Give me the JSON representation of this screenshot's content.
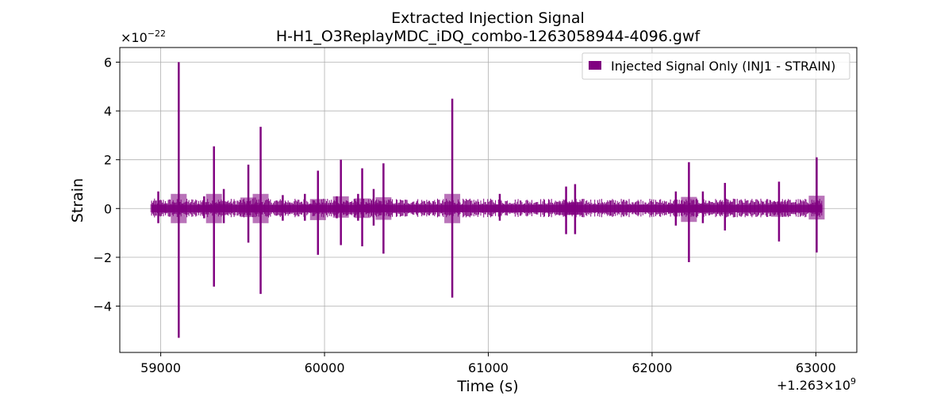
{
  "chart_data": {
    "type": "line",
    "title": "Extracted Injection Signal",
    "subtitle": "H-H1_O3ReplayMDC_iDQ_combo-1263058944-4096.gwf",
    "xlabel": "Time (s)",
    "ylabel": "Strain",
    "x_offset_text": {
      "prefix": "+1.263×10",
      "exponent": "9"
    },
    "y_scale_text": {
      "prefix": "×10",
      "exponent": "−22"
    },
    "xlim": [
      58750,
      63250
    ],
    "ylim": [
      -5.9,
      6.6
    ],
    "x_ticks": [
      59000,
      60000,
      61000,
      62000,
      63000
    ],
    "x_tick_labels": [
      "59000",
      "60000",
      "61000",
      "62000",
      "63000"
    ],
    "y_ticks": [
      -4,
      -2,
      0,
      2,
      4,
      6
    ],
    "y_tick_labels": [
      "−4",
      "−2",
      "0",
      "2",
      "4",
      "6"
    ],
    "grid": true,
    "legend_position": "top-right",
    "series": [
      {
        "name": "Injected Signal Only (INJ1 - STRAIN)",
        "color": "#800080",
        "x_range": [
          58944,
          63040
        ],
        "baseline_amplitude": 0.15,
        "spikes": [
          {
            "x": 58985,
            "max": 0.7,
            "min": -0.6
          },
          {
            "x": 59110,
            "max": 6.0,
            "min": -5.3
          },
          {
            "x": 59265,
            "max": 0.5,
            "min": -0.4
          },
          {
            "x": 59325,
            "max": 2.55,
            "min": -3.2
          },
          {
            "x": 59385,
            "max": 0.8,
            "min": -0.6
          },
          {
            "x": 59535,
            "max": 1.8,
            "min": -1.4
          },
          {
            "x": 59610,
            "max": 3.35,
            "min": -3.5
          },
          {
            "x": 59745,
            "max": 0.55,
            "min": -0.5
          },
          {
            "x": 59880,
            "max": 0.6,
            "min": -0.5
          },
          {
            "x": 59960,
            "max": 1.55,
            "min": -1.9
          },
          {
            "x": 60075,
            "max": 0.5,
            "min": -0.4
          },
          {
            "x": 60100,
            "max": 2.0,
            "min": -1.5
          },
          {
            "x": 60205,
            "max": 0.6,
            "min": -0.5
          },
          {
            "x": 60230,
            "max": 1.65,
            "min": -1.55
          },
          {
            "x": 60300,
            "max": 0.8,
            "min": -0.7
          },
          {
            "x": 60360,
            "max": 1.85,
            "min": -1.85
          },
          {
            "x": 60780,
            "max": 4.5,
            "min": -3.65
          },
          {
            "x": 61070,
            "max": 0.6,
            "min": -0.5
          },
          {
            "x": 61475,
            "max": 0.9,
            "min": -1.05
          },
          {
            "x": 61530,
            "max": 1.0,
            "min": -1.05
          },
          {
            "x": 62145,
            "max": 0.7,
            "min": -0.7
          },
          {
            "x": 62225,
            "max": 1.9,
            "min": -2.2
          },
          {
            "x": 62310,
            "max": 0.7,
            "min": -0.6
          },
          {
            "x": 62445,
            "max": 1.05,
            "min": -0.9
          },
          {
            "x": 62775,
            "max": 1.1,
            "min": -1.35
          },
          {
            "x": 63005,
            "max": 2.1,
            "min": -1.8
          }
        ]
      }
    ]
  }
}
